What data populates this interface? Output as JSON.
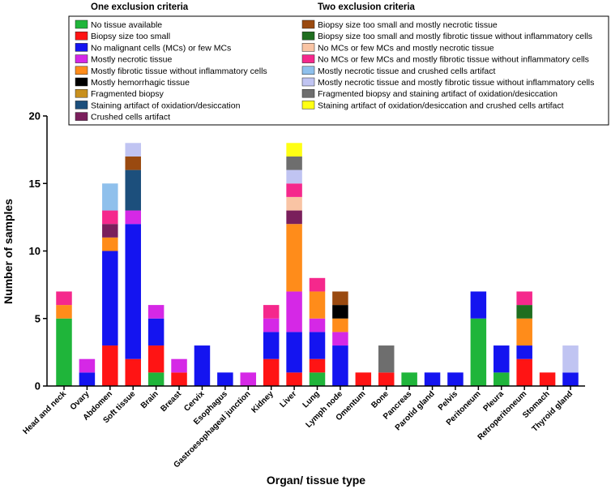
{
  "chart_data": {
    "type": "bar",
    "stacked": true,
    "xlabel": "Organ/ tissue type",
    "ylabel": "Number of samples",
    "ylim": [
      0,
      20
    ],
    "yticks": [
      0,
      5,
      10,
      15,
      20
    ],
    "legend_headers": {
      "one": "One exclusion criteria",
      "two": "Two exclusion criteria"
    },
    "categories": [
      "Head and neck",
      "Ovary",
      "Abdomen",
      "Soft tissue",
      "Brain",
      "Breast",
      "Cervix",
      "Esophagus",
      "Gastroesophageal junction",
      "Kidney",
      "Liver",
      "Lung",
      "Lymph node",
      "Omentum",
      "Bone",
      "Pancreas",
      "Parotid gland",
      "Pelvis",
      "Peritoneum",
      "Pleura",
      "Retroperitoneum",
      "Stomach",
      "Thyroid gland"
    ],
    "series": [
      {
        "name": "No tissue available",
        "group": "one",
        "color": "#1fb53a",
        "values": [
          5,
          0,
          0,
          0,
          1,
          0,
          0,
          0,
          0,
          0,
          0,
          1,
          0,
          0,
          0,
          1,
          0,
          0,
          5,
          1,
          0,
          0,
          0
        ]
      },
      {
        "name": "Biopsy size too small",
        "group": "one",
        "color": "#ff1414",
        "values": [
          0,
          0,
          3,
          2,
          2,
          1,
          0,
          0,
          0,
          2,
          1,
          1,
          0,
          1,
          1,
          0,
          0,
          0,
          0,
          0,
          2,
          1,
          0
        ]
      },
      {
        "name": "No malignant cells (MCs) or few MCs",
        "group": "one",
        "color": "#1414f0",
        "values": [
          0,
          1,
          7,
          10,
          2,
          0,
          3,
          1,
          0,
          2,
          3,
          2,
          3,
          0,
          0,
          0,
          1,
          1,
          2,
          2,
          1,
          0,
          1
        ]
      },
      {
        "name": "Mostly necrotic tissue",
        "group": "one",
        "color": "#d528e6",
        "values": [
          0,
          1,
          0,
          1,
          1,
          1,
          0,
          0,
          1,
          1,
          3,
          1,
          1,
          0,
          0,
          0,
          0,
          0,
          0,
          0,
          0,
          0,
          0
        ]
      },
      {
        "name": "Mostly fibrotic tissue without inflammatory cells",
        "group": "one",
        "color": "#ff8c1a",
        "values": [
          1,
          0,
          1,
          0,
          0,
          0,
          0,
          0,
          0,
          0,
          5,
          2,
          1,
          0,
          0,
          0,
          0,
          0,
          0,
          0,
          2,
          0,
          0
        ]
      },
      {
        "name": "Mostly hemorrhagic tissue",
        "group": "one",
        "color": "#000000",
        "values": [
          0,
          0,
          0,
          0,
          0,
          0,
          0,
          0,
          0,
          0,
          0,
          0,
          1,
          0,
          0,
          0,
          0,
          0,
          0,
          0,
          0,
          0,
          0
        ]
      },
      {
        "name": "Fragmented biopsy",
        "group": "one",
        "color": "#c8901e",
        "values": [
          0,
          0,
          0,
          0,
          0,
          0,
          0,
          0,
          0,
          0,
          0,
          0,
          0,
          0,
          0,
          0,
          0,
          0,
          0,
          0,
          0,
          0,
          0
        ]
      },
      {
        "name": "Staining artifact of oxidation/desiccation",
        "group": "one",
        "color": "#1c4f7c",
        "values": [
          0,
          0,
          0,
          3,
          0,
          0,
          0,
          0,
          0,
          0,
          0,
          0,
          0,
          0,
          0,
          0,
          0,
          0,
          0,
          0,
          0,
          0,
          0
        ]
      },
      {
        "name": "Crushed cells artifact",
        "group": "one",
        "color": "#7a1f5c",
        "values": [
          0,
          0,
          1,
          0,
          0,
          0,
          0,
          0,
          0,
          0,
          1,
          0,
          0,
          0,
          0,
          0,
          0,
          0,
          0,
          0,
          0,
          0,
          0
        ]
      },
      {
        "name": "Biopsy size too small and mostly necrotic tissue",
        "group": "two",
        "color": "#9a4a10",
        "values": [
          0,
          0,
          0,
          1,
          0,
          0,
          0,
          0,
          0,
          0,
          0,
          0,
          1,
          0,
          0,
          0,
          0,
          0,
          0,
          0,
          0,
          0,
          0
        ]
      },
      {
        "name": "Biopsy size too small and mostly fibrotic tissue without inflammatory cells",
        "group": "two",
        "color": "#1f6e1f",
        "values": [
          0,
          0,
          0,
          0,
          0,
          0,
          0,
          0,
          0,
          0,
          0,
          0,
          0,
          0,
          0,
          0,
          0,
          0,
          0,
          0,
          1,
          0,
          0
        ]
      },
      {
        "name": "No MCs or few MCs and mostly necrotic tissue",
        "group": "two",
        "color": "#f9c4a4",
        "values": [
          0,
          0,
          0,
          0,
          0,
          0,
          0,
          0,
          0,
          0,
          1,
          0,
          0,
          0,
          0,
          0,
          0,
          0,
          0,
          0,
          0,
          0,
          0
        ]
      },
      {
        "name": "No MCs or few MCs and mostly fibrotic tissue without inflammatory cells",
        "group": "two",
        "color": "#f5288c",
        "values": [
          1,
          0,
          1,
          0,
          0,
          0,
          0,
          0,
          0,
          1,
          1,
          1,
          0,
          0,
          0,
          0,
          0,
          0,
          0,
          0,
          1,
          0,
          0
        ]
      },
      {
        "name": "Mostly necrotic tissue and crushed cells artifact",
        "group": "two",
        "color": "#8fc0ec",
        "values": [
          0,
          0,
          2,
          0,
          0,
          0,
          0,
          0,
          0,
          0,
          0,
          0,
          0,
          0,
          0,
          0,
          0,
          0,
          0,
          0,
          0,
          0,
          0
        ]
      },
      {
        "name": "Mostly necrotic tissue and mostly fibrotic tissue without inflammatory cells",
        "group": "two",
        "color": "#c0c4f2",
        "values": [
          0,
          0,
          0,
          1,
          0,
          0,
          0,
          0,
          0,
          0,
          1,
          0,
          0,
          0,
          0,
          0,
          0,
          0,
          0,
          0,
          0,
          0,
          2
        ]
      },
      {
        "name": "Fragmented biopsy and staining artifact of oxidation/desiccation",
        "group": "two",
        "color": "#6e6e6e",
        "values": [
          0,
          0,
          0,
          0,
          0,
          0,
          0,
          0,
          0,
          0,
          1,
          0,
          0,
          0,
          2,
          0,
          0,
          0,
          0,
          0,
          0,
          0,
          0
        ]
      },
      {
        "name": "Staining artifact of oxidation/desiccation and crushed cells artifact",
        "group": "two",
        "color": "#ffff14",
        "values": [
          0,
          0,
          0,
          0,
          0,
          0,
          0,
          0,
          0,
          0,
          1,
          0,
          0,
          0,
          0,
          0,
          0,
          0,
          0,
          0,
          0,
          0,
          0
        ]
      }
    ]
  }
}
